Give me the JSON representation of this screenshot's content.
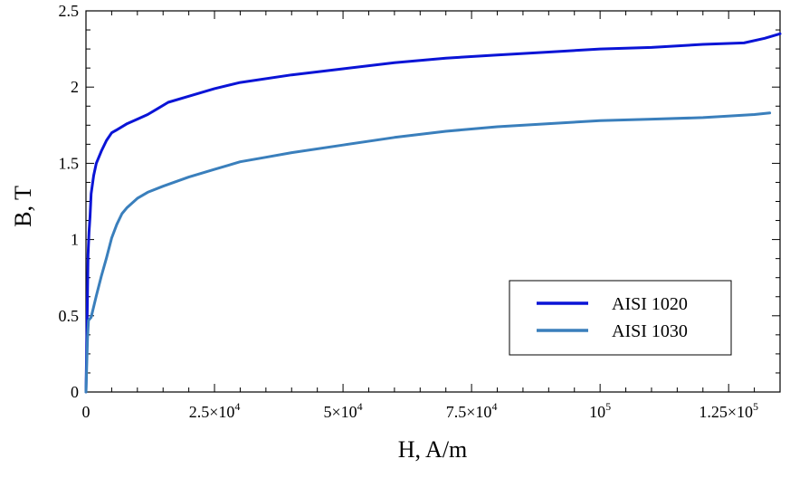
{
  "chart_data": {
    "type": "line",
    "xlabel": "H, A/m",
    "ylabel": "B, T",
    "xlim": [
      0,
      135000
    ],
    "ylim": [
      0,
      2.5
    ],
    "x_ticks": [
      {
        "value": 0,
        "label": "0"
      },
      {
        "value": 25000,
        "mant": "2.5×10",
        "exp": "4"
      },
      {
        "value": 50000,
        "mant": "5×10",
        "exp": "4"
      },
      {
        "value": 75000,
        "mant": "7.5×10",
        "exp": "4"
      },
      {
        "value": 100000,
        "mant": "10",
        "exp": "5"
      },
      {
        "value": 125000,
        "mant": "1.25×10",
        "exp": "5"
      }
    ],
    "y_ticks": [
      {
        "value": 0,
        "label": "0"
      },
      {
        "value": 0.5,
        "label": "0.5"
      },
      {
        "value": 1,
        "label": "1"
      },
      {
        "value": 1.5,
        "label": "1.5"
      },
      {
        "value": 2,
        "label": "2"
      },
      {
        "value": 2.5,
        "label": "2.5"
      }
    ],
    "grid": false,
    "legend_position": "bottom-right",
    "series": [
      {
        "name": "AISI 1020",
        "color": "#0a14d6",
        "x": [
          0,
          200,
          400,
          600,
          800,
          1000,
          1500,
          2000,
          3000,
          4000,
          5000,
          6000,
          8000,
          10000,
          12000,
          14000,
          16000,
          20000,
          25000,
          30000,
          40000,
          50000,
          60000,
          70000,
          80000,
          90000,
          100000,
          110000,
          120000,
          128000,
          132000,
          135000
        ],
        "y": [
          0,
          0.4,
          0.9,
          1.05,
          1.15,
          1.3,
          1.42,
          1.5,
          1.58,
          1.65,
          1.7,
          1.72,
          1.76,
          1.79,
          1.82,
          1.86,
          1.9,
          1.94,
          1.99,
          2.03,
          2.08,
          2.12,
          2.16,
          2.19,
          2.21,
          2.23,
          2.25,
          2.26,
          2.28,
          2.29,
          2.32,
          2.35
        ]
      },
      {
        "name": "AISI 1030",
        "color": "#3a7fbc",
        "x": [
          0,
          300,
          500,
          1000,
          2000,
          3000,
          4000,
          5000,
          6000,
          7000,
          8000,
          10000,
          12000,
          15000,
          20000,
          25000,
          30000,
          35000,
          40000,
          50000,
          60000,
          70000,
          80000,
          90000,
          100000,
          110000,
          120000,
          130000,
          133000
        ],
        "y": [
          0,
          0.35,
          0.47,
          0.49,
          0.63,
          0.76,
          0.88,
          1.01,
          1.1,
          1.17,
          1.21,
          1.27,
          1.31,
          1.35,
          1.41,
          1.46,
          1.51,
          1.54,
          1.57,
          1.62,
          1.67,
          1.71,
          1.74,
          1.76,
          1.78,
          1.79,
          1.8,
          1.82,
          1.83
        ]
      }
    ]
  }
}
